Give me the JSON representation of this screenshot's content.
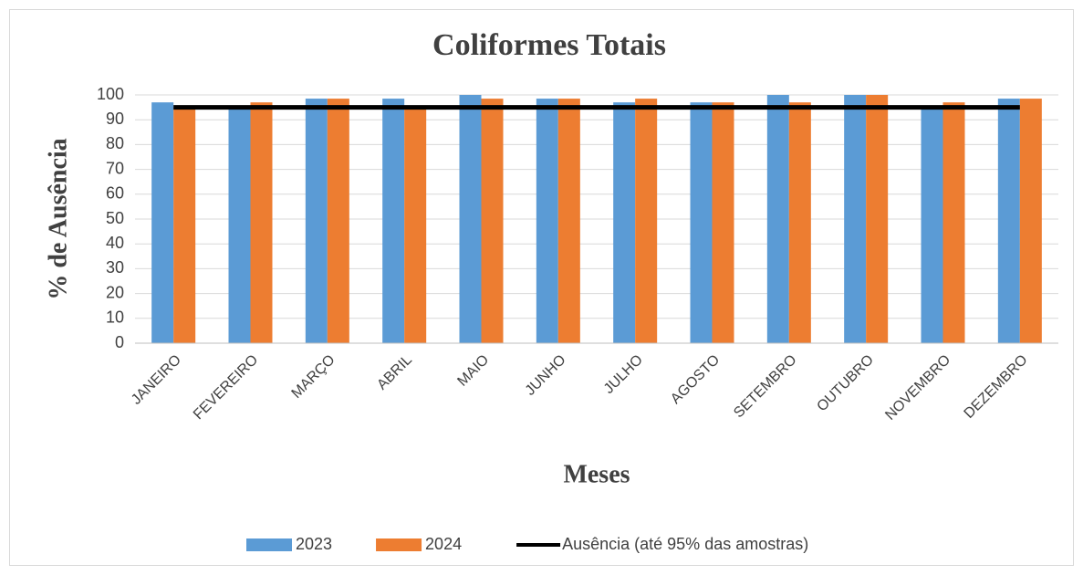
{
  "chart_data": {
    "type": "bar",
    "title": "Coliformes Totais",
    "x_label": "Meses",
    "y_label": "% de Ausência",
    "categories": [
      "JANEIRO",
      "FEVEREIRO",
      "MARÇO",
      "ABRIL",
      "MAIO",
      "JUNHO",
      "JULHO",
      "AGOSTO",
      "SETEMBRO",
      "OUTUBRO",
      "NOVEMBRO",
      "DEZEMBRO"
    ],
    "series": [
      {
        "name": "2023",
        "color": "#5b9bd5",
        "values": [
          97,
          95,
          98.5,
          98.5,
          100,
          98.5,
          97,
          97,
          100,
          100,
          95,
          98.5
        ]
      },
      {
        "name": "2024",
        "color": "#ed7d31",
        "values": [
          95,
          97,
          98.5,
          95,
          98.5,
          98.5,
          98.5,
          97,
          97,
          100,
          97,
          98.5
        ]
      },
      {
        "name": "Ausência (até  95% das amostras)",
        "color": "#000000",
        "type": "line",
        "values": [
          95,
          95,
          95,
          95,
          95,
          95,
          95,
          95,
          95,
          95,
          95,
          95
        ]
      }
    ],
    "ylim": [
      0,
      100
    ],
    "yticks": [
      0,
      10,
      20,
      30,
      40,
      50,
      60,
      70,
      80,
      90,
      100
    ],
    "grid": true,
    "legend": "bottom"
  }
}
